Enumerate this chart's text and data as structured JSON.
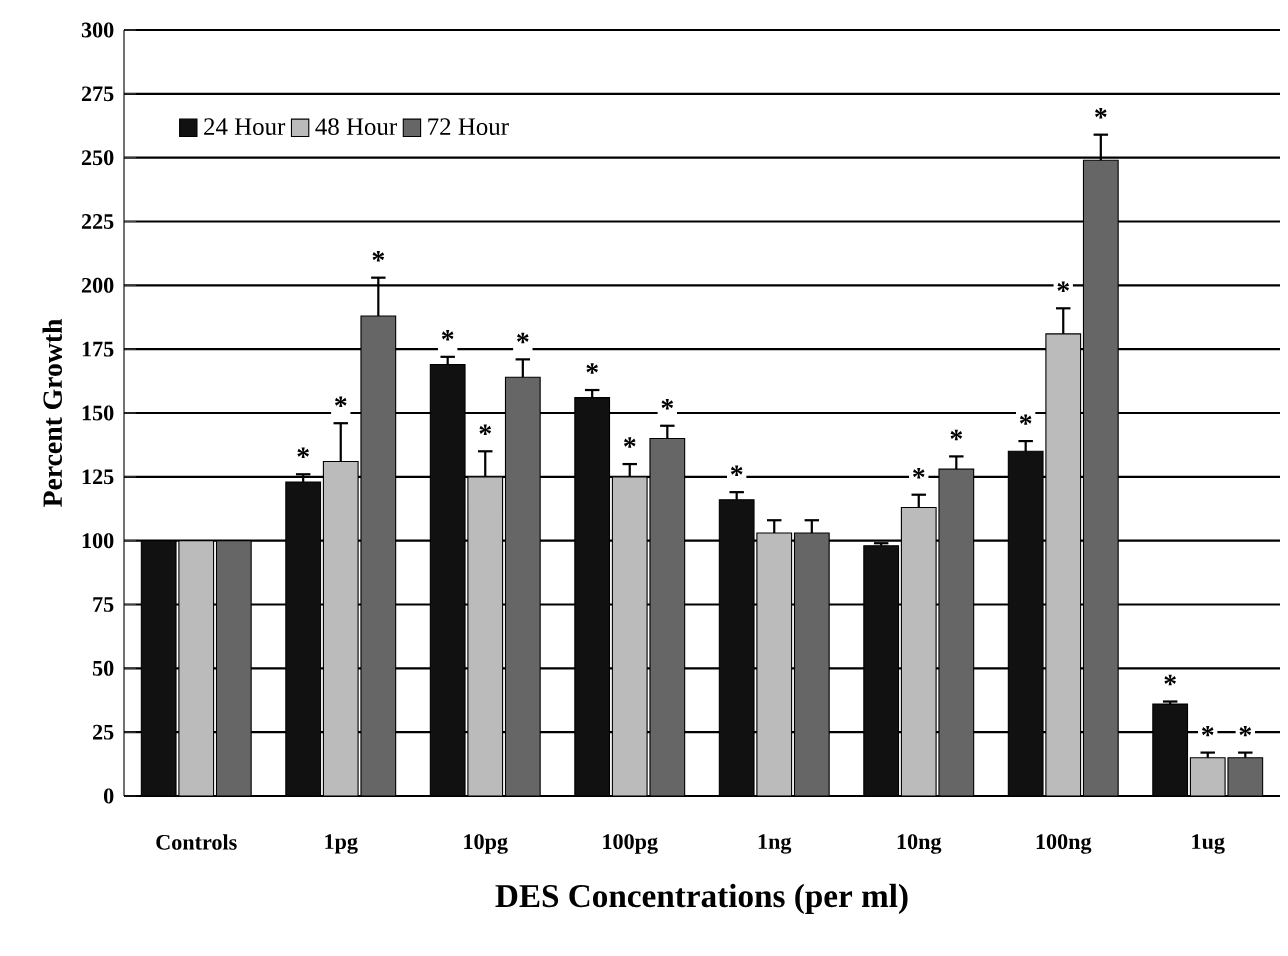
{
  "chart_data": {
    "type": "bar",
    "xlabel": "DES Concentrations (per ml)",
    "ylabel": "Percent Growth",
    "categories": [
      "Controls",
      "1pg",
      "10pg",
      "100pg",
      "1ng",
      "10ng",
      "100ng",
      "1ug"
    ],
    "series": [
      {
        "name": "24 Hour",
        "color": "#111111",
        "values": [
          100,
          123,
          169,
          156,
          116,
          98,
          135,
          36
        ],
        "errors": [
          null,
          3,
          3,
          3,
          3,
          1,
          4,
          1
        ],
        "value_labels": [
          null,
          "*",
          "*",
          "*",
          "*",
          null,
          "*",
          "*"
        ]
      },
      {
        "name": "48 Hour",
        "color": "#bbbbbb",
        "values": [
          100,
          131,
          125,
          125,
          103,
          113,
          181,
          15
        ],
        "errors": [
          null,
          15,
          10,
          5,
          5,
          5,
          10,
          2
        ],
        "value_labels": [
          null,
          "*",
          "*",
          "*",
          null,
          "*",
          "*",
          "*"
        ]
      },
      {
        "name": "72 Hour",
        "color": "#666666",
        "values": [
          100,
          188,
          164,
          140,
          103,
          128,
          249,
          15
        ],
        "errors": [
          null,
          15,
          7,
          5,
          5,
          5,
          10,
          2
        ],
        "value_labels": [
          null,
          "*",
          "*",
          "*",
          null,
          "*",
          "*",
          "*"
        ]
      }
    ],
    "ylim": [
      0,
      300
    ],
    "yticks": [
      0,
      25,
      50,
      75,
      100,
      125,
      150,
      175,
      200,
      225,
      250,
      275,
      300
    ],
    "grid": "y",
    "legend": "top left"
  }
}
